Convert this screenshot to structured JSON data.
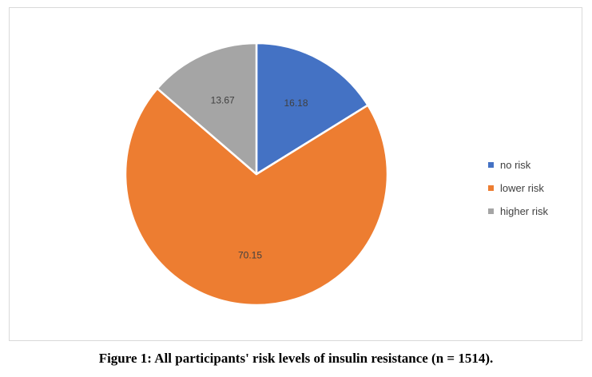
{
  "chart_data": {
    "type": "pie",
    "slices": [
      {
        "label": "no risk",
        "value": 16.18,
        "color": "#4472c4"
      },
      {
        "label": "lower risk",
        "value": 70.15,
        "color": "#ed7d31"
      },
      {
        "label": "higher risk",
        "value": 13.67,
        "color": "#a5a5a5"
      }
    ],
    "legend_position": "right"
  },
  "caption": "Figure 1: All participants' risk levels of insulin resistance (n = 1514)."
}
